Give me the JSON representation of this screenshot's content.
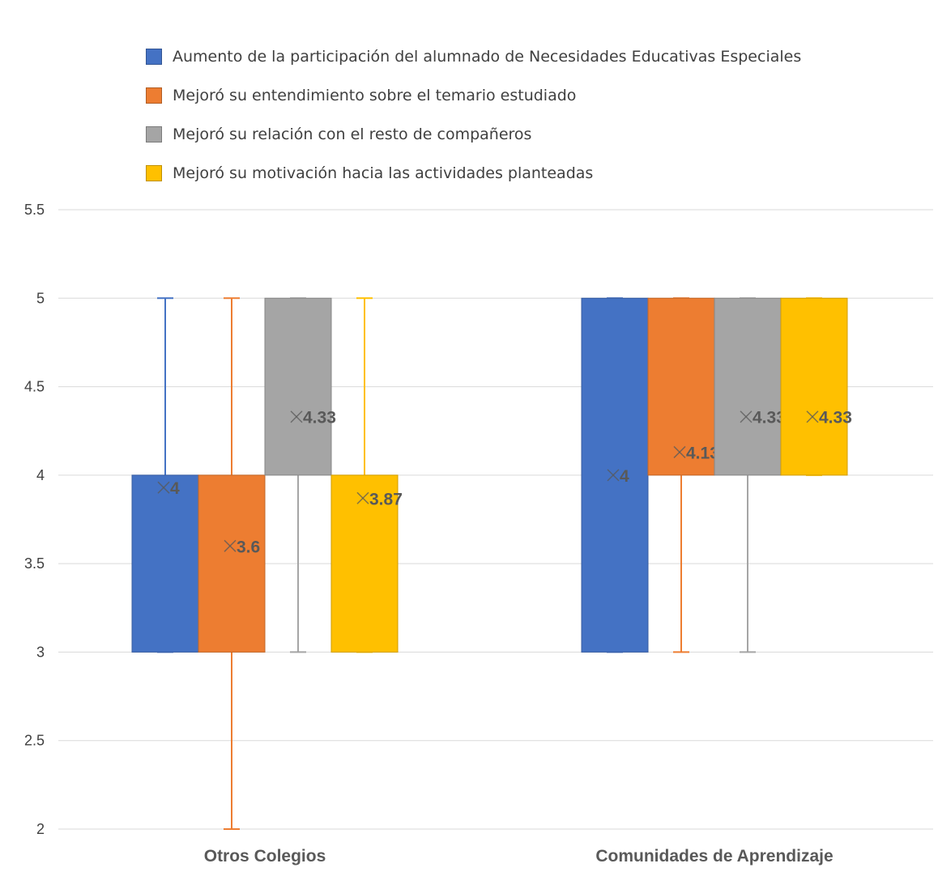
{
  "chart_data": {
    "type": "boxplot",
    "title": "",
    "xlabel": "",
    "ylabel": "",
    "ylim": [
      2,
      5.5
    ],
    "yticks": [
      2,
      2.5,
      3,
      3.5,
      4,
      4.5,
      5,
      5.5
    ],
    "ytick_labels": [
      "2",
      "2.5",
      "3",
      "3.5",
      "4",
      "4.5",
      "5",
      "5.5"
    ],
    "grid": true,
    "legend_position": "top",
    "categories": [
      "Otros Colegios",
      "Comunidades de Aprendizaje"
    ],
    "series": [
      {
        "name": "Aumento de la participación del alumnado de Necesidades Educativas Especiales",
        "color": "#4472C4",
        "stats": [
          {
            "min": 3,
            "q1": 3,
            "median": 4,
            "q3": 4,
            "max": 5,
            "mean": 3.93,
            "mean_label": "4"
          },
          {
            "min": 3,
            "q1": 3,
            "median": 5,
            "q3": 5,
            "max": 5,
            "mean": 4,
            "mean_label": "4"
          }
        ]
      },
      {
        "name": "Mejoró su entendimiento sobre el temario estudiado",
        "color": "#ED7D31",
        "stats": [
          {
            "min": 2,
            "q1": 3,
            "median": 4,
            "q3": 4,
            "max": 5,
            "mean": 3.6,
            "mean_label": "3.6"
          },
          {
            "min": 3,
            "q1": 4,
            "median": 5,
            "q3": 5,
            "max": 5,
            "mean": 4.13,
            "mean_label": "4.13"
          }
        ]
      },
      {
        "name": "Mejoró su relación con el resto de compañeros",
        "color": "#A5A5A5",
        "stats": [
          {
            "min": 3,
            "q1": 4,
            "median": 4,
            "q3": 5,
            "max": 5,
            "mean": 4.33,
            "mean_label": "4.33"
          },
          {
            "min": 3,
            "q1": 4,
            "median": 5,
            "q3": 5,
            "max": 5,
            "mean": 4.33,
            "mean_label": "4.33"
          }
        ]
      },
      {
        "name": "Mejoró su motivación hacia las actividades planteadas",
        "color": "#FFC000",
        "stats": [
          {
            "min": 3,
            "q1": 3,
            "median": 4,
            "q3": 4,
            "max": 5,
            "mean": 3.87,
            "mean_label": "3.87"
          },
          {
            "min": 4,
            "q1": 4,
            "median": 5,
            "q3": 5,
            "max": 5,
            "mean": 4.33,
            "mean_label": "4.33"
          }
        ]
      }
    ]
  }
}
